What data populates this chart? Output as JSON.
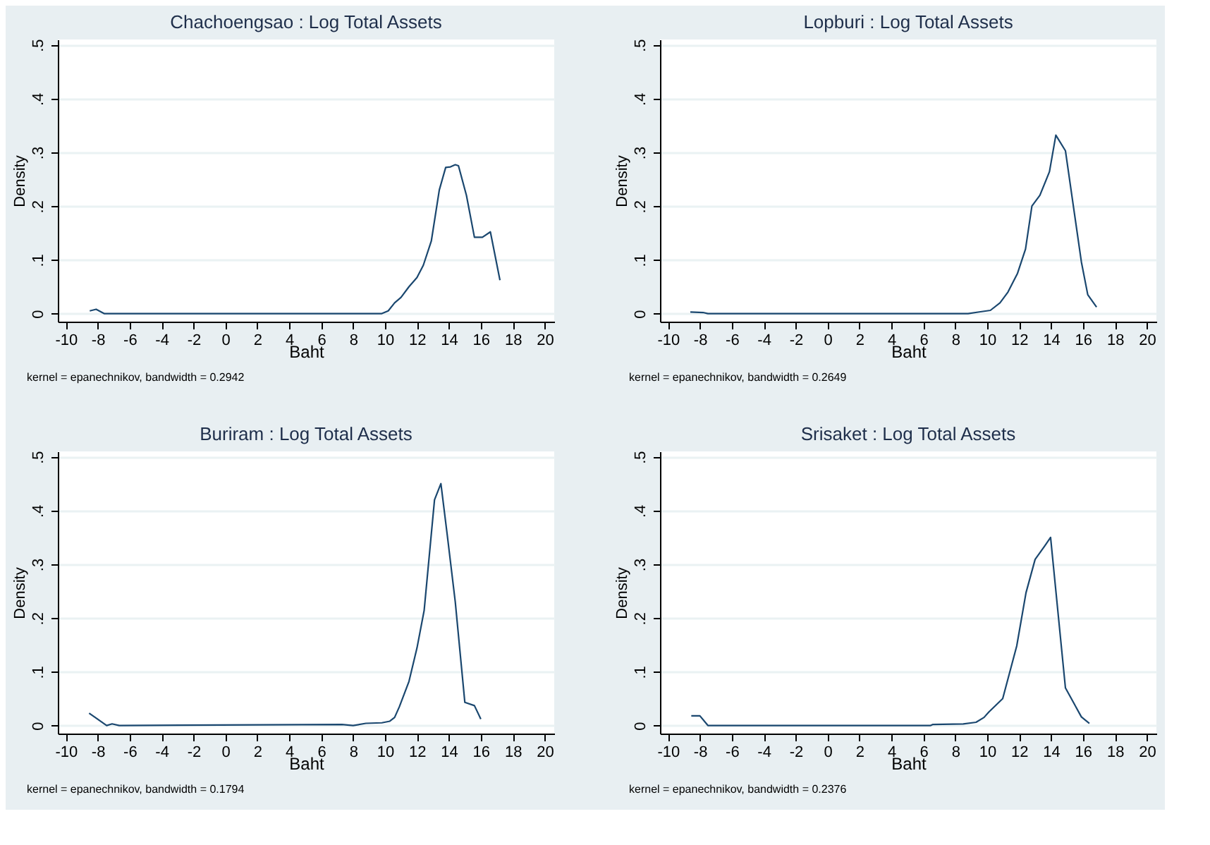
{
  "chart_data": [
    {
      "type": "line",
      "title": "Chachoengsao : Log Total Assets",
      "xlabel": "Baht",
      "ylabel": "Density",
      "annotations": [
        "kernel = epanechnikov, bandwidth = 0.2942"
      ],
      "grid": "y",
      "xlim": [
        -10.5,
        20.6
      ],
      "ylim": [
        -0.015,
        0.51
      ],
      "xticks": [
        -10,
        -8,
        -6,
        -4,
        -2,
        0,
        2,
        4,
        6,
        8,
        10,
        12,
        14,
        16,
        18,
        20
      ],
      "yticks": [
        {
          "value": 0,
          "label": "0"
        },
        {
          "value": 0.1,
          "label": ".1"
        },
        {
          "value": 0.2,
          "label": ".2"
        },
        {
          "value": 0.3,
          "label": ".3"
        },
        {
          "value": 0.4,
          "label": ".4"
        },
        {
          "value": 0.5,
          "label": ".5"
        }
      ],
      "x": [
        -8.5,
        -8.1,
        -7.6,
        -6,
        0,
        9.8,
        10.2,
        10.6,
        11,
        11.5,
        12,
        12.4,
        12.9,
        13.4,
        13.8,
        14.1,
        14.4,
        14.6,
        15.1,
        15.6,
        16.1,
        16.6,
        17.2
      ],
      "series": [
        {
          "color": "#1a476f",
          "values": [
            0.005,
            0.008,
            0,
            0,
            0,
            0,
            0.005,
            0.02,
            0.03,
            0.05,
            0.067,
            0.09,
            0.135,
            0.23,
            0.272,
            0.273,
            0.277,
            0.275,
            0.22,
            0.142,
            0.142,
            0.152,
            0.062
          ]
        }
      ]
    },
    {
      "type": "line",
      "title": "Lopburi : Log Total Assets",
      "xlabel": "Baht",
      "ylabel": "Density",
      "annotations": [
        "kernel = epanechnikov, bandwidth = 0.2649"
      ],
      "grid": "y",
      "xlim": [
        -10.5,
        20.6
      ],
      "ylim": [
        -0.015,
        0.51
      ],
      "xticks": [
        -10,
        -8,
        -6,
        -4,
        -2,
        0,
        2,
        4,
        6,
        8,
        10,
        12,
        14,
        16,
        18,
        20
      ],
      "yticks": [
        {
          "value": 0,
          "label": "0"
        },
        {
          "value": 0.1,
          "label": ".1"
        },
        {
          "value": 0.2,
          "label": ".2"
        },
        {
          "value": 0.3,
          "label": ".3"
        },
        {
          "value": 0.4,
          "label": ".4"
        },
        {
          "value": 0.5,
          "label": ".5"
        }
      ],
      "x": [
        -8.6,
        -7.8,
        -7.5,
        8.8,
        9.5,
        10.2,
        10.8,
        11.3,
        11.9,
        12.4,
        12.8,
        13.3,
        13.9,
        14.3,
        14.9,
        15.9,
        16.3,
        16.85
      ],
      "series": [
        {
          "color": "#1a476f",
          "values": [
            0.003,
            0.002,
            0,
            0,
            0.003,
            0.006,
            0.02,
            0.04,
            0.075,
            0.12,
            0.2,
            0.22,
            0.264,
            0.332,
            0.303,
            0.096,
            0.035,
            0.012
          ]
        }
      ]
    },
    {
      "type": "line",
      "title": "Buriram : Log Total Assets",
      "xlabel": "Baht",
      "ylabel": "Density",
      "annotations": [
        "kernel = epanechnikov, bandwidth = 0.1794"
      ],
      "grid": "y",
      "xlim": [
        -10.5,
        20.6
      ],
      "ylim": [
        -0.015,
        0.51
      ],
      "xticks": [
        -10,
        -8,
        -6,
        -4,
        -2,
        0,
        2,
        4,
        6,
        8,
        10,
        12,
        14,
        16,
        18,
        20
      ],
      "yticks": [
        {
          "value": 0,
          "label": "0"
        },
        {
          "value": 0.1,
          "label": ".1"
        },
        {
          "value": 0.2,
          "label": ".2"
        },
        {
          "value": 0.3,
          "label": ".3"
        },
        {
          "value": 0.4,
          "label": ".4"
        },
        {
          "value": 0.5,
          "label": ".5"
        }
      ],
      "x": [
        -8.54,
        -7.44,
        -7.1,
        -6.65,
        7.3,
        8,
        8.8,
        9.8,
        10.3,
        10.6,
        10.9,
        11.5,
        12,
        12.45,
        13.1,
        13.5,
        13.9,
        14.4,
        15,
        15.6,
        16
      ],
      "series": [
        {
          "color": "#1a476f",
          "values": [
            0.023,
            0,
            0.003,
            0,
            0.002,
            0,
            0.004,
            0.005,
            0.008,
            0.015,
            0.035,
            0.082,
            0.144,
            0.214,
            0.42,
            0.45,
            0.354,
            0.23,
            0.043,
            0.037,
            0.012
          ]
        }
      ]
    },
    {
      "type": "line",
      "title": "Srisaket : Log Total Assets",
      "xlabel": "Baht",
      "ylabel": "Density",
      "annotations": [
        "kernel = epanechnikov, bandwidth = 0.2376"
      ],
      "grid": "y",
      "xlim": [
        -10.5,
        20.6
      ],
      "ylim": [
        -0.015,
        0.51
      ],
      "xticks": [
        -10,
        -8,
        -6,
        -4,
        -2,
        0,
        2,
        4,
        6,
        8,
        10,
        12,
        14,
        16,
        18,
        20
      ],
      "yticks": [
        {
          "value": 0,
          "label": "0"
        },
        {
          "value": 0.1,
          "label": ".1"
        },
        {
          "value": 0.2,
          "label": ".2"
        },
        {
          "value": 0.3,
          "label": ".3"
        },
        {
          "value": 0.4,
          "label": ".4"
        },
        {
          "value": 0.5,
          "label": ".5"
        }
      ],
      "x": [
        -8.54,
        -8,
        -7.5,
        6.46,
        6.6,
        8.5,
        9.3,
        9.8,
        10.1,
        10.97,
        11.85,
        12.43,
        13,
        13.6,
        13.97,
        14.9,
        15.9,
        16.4
      ],
      "series": [
        {
          "color": "#1a476f",
          "values": [
            0.018,
            0.018,
            0,
            0,
            0.002,
            0.003,
            0.006,
            0.015,
            0.025,
            0.05,
            0.148,
            0.247,
            0.309,
            0.334,
            0.35,
            0.07,
            0.016,
            0.004
          ]
        }
      ]
    }
  ]
}
